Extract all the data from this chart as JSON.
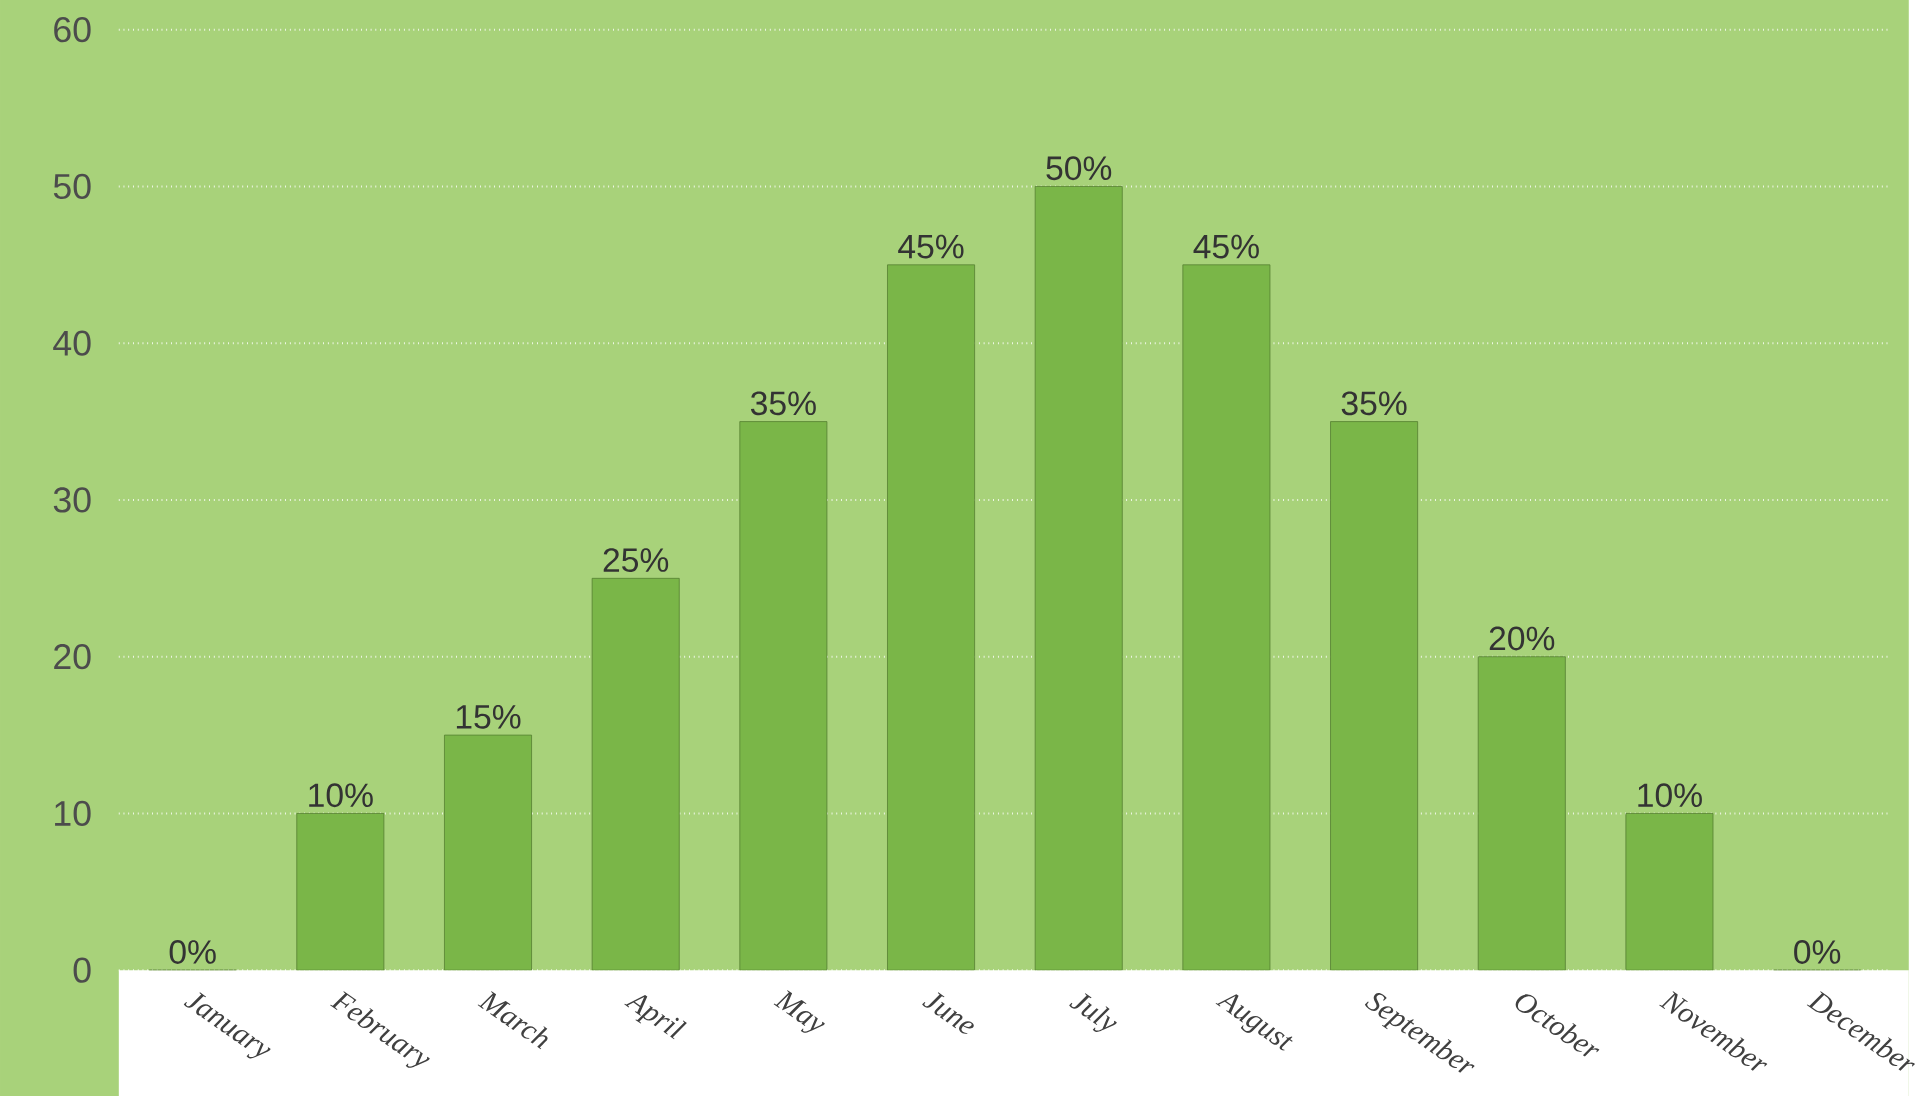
{
  "chart_data": {
    "type": "bar",
    "categories": [
      "January",
      "February",
      "March",
      "April",
      "May",
      "June",
      "July",
      "August",
      "September",
      "October",
      "November",
      "December"
    ],
    "values": [
      0,
      10,
      15,
      25,
      35,
      45,
      50,
      45,
      35,
      20,
      10,
      0
    ],
    "value_labels": [
      "0%",
      "10%",
      "15%",
      "25%",
      "35%",
      "45%",
      "50%",
      "45%",
      "35%",
      "20%",
      "10%",
      "0%"
    ],
    "color": "#7ab648",
    "ylim": [
      0,
      60
    ],
    "yticks": [
      0,
      10,
      20,
      30,
      40,
      50,
      60
    ],
    "grid": "y"
  }
}
